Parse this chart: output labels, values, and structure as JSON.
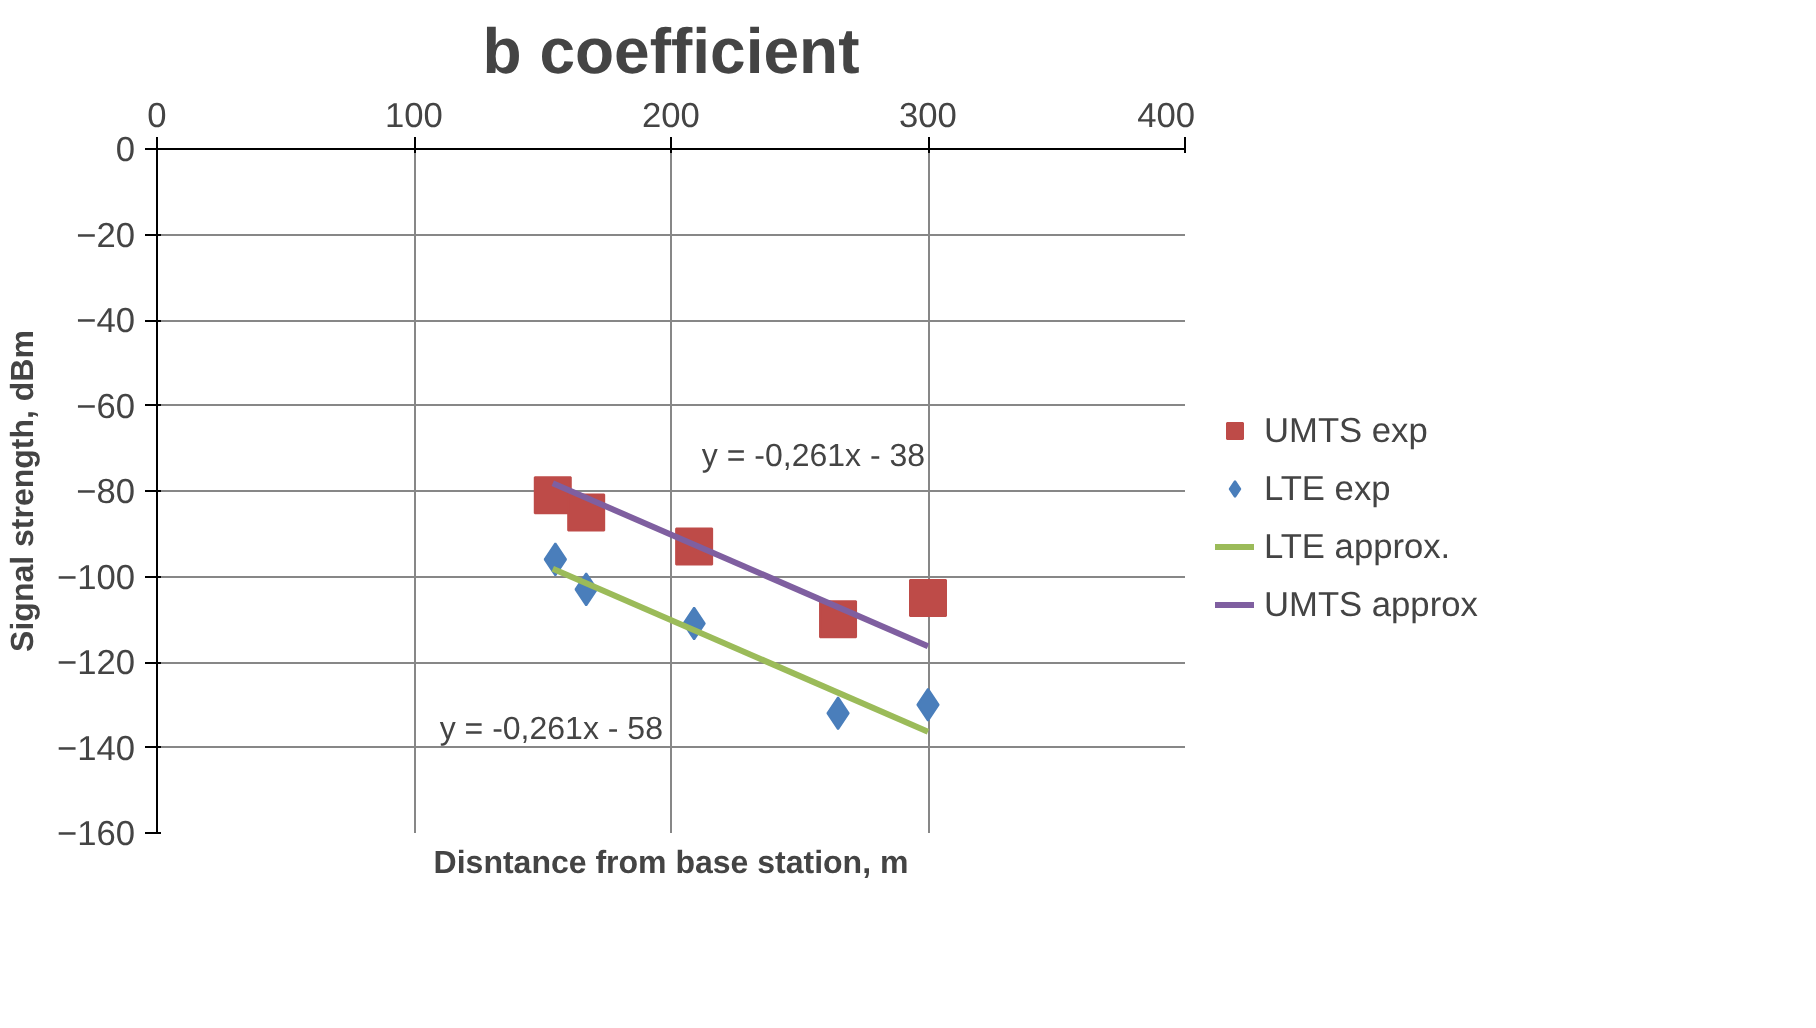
{
  "chart_data": {
    "type": "scatter",
    "title": "b coefficient",
    "xlabel": "Disntance from base station, m",
    "ylabel": "Signal strength, dBm",
    "xlim": [
      0,
      400
    ],
    "xticks": [
      0,
      100,
      200,
      300,
      400
    ],
    "ylim": [
      -160,
      0
    ],
    "yticks": [
      -160,
      -140,
      -120,
      -100,
      -80,
      -60,
      -40,
      -20,
      0
    ],
    "grid": true,
    "legend": "right",
    "series": [
      {
        "name": "UMTS exp",
        "color": "#be4b48",
        "marker": "square",
        "x": [
          154,
          167,
          209,
          265,
          300
        ],
        "values": [
          -81,
          -85,
          -93,
          -110,
          -105
        ]
      },
      {
        "name": "LTE exp",
        "color": "#4a7ebb",
        "marker": "diamond",
        "x": [
          155,
          167,
          209,
          265,
          300
        ],
        "values": [
          -96,
          -103,
          -111,
          -132,
          -130
        ]
      },
      {
        "name": "LTE approx.",
        "type": "line",
        "color": "#9bbb59",
        "marker": "none",
        "x": [
          154,
          300
        ],
        "values": [
          -98.2,
          -136.3
        ]
      },
      {
        "name": "UMTS approx",
        "type": "line",
        "color": "#7f5fa0",
        "marker": "none",
        "x": [
          154,
          300
        ],
        "values": [
          -78.2,
          -116.3
        ]
      }
    ],
    "annotations": [
      "y = -0,261x - 38",
      "y = -0,261x - 58"
    ]
  }
}
